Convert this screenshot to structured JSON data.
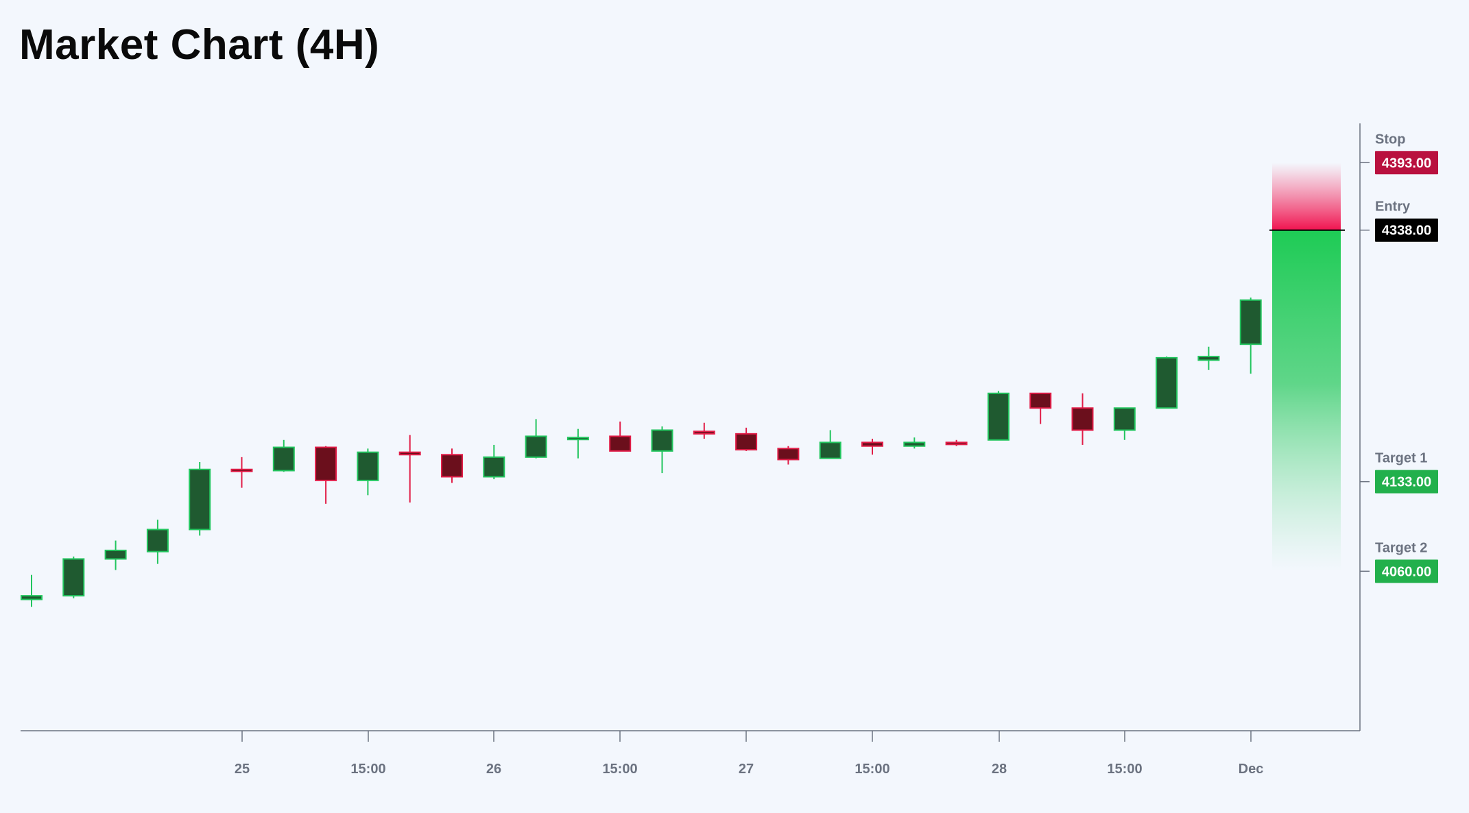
{
  "page": {
    "title": "Market Chart (4H)"
  },
  "colors": {
    "background": "#f3f7fd",
    "up_body": "#1f5a30",
    "up_border": "#22c55e",
    "down_body": "#6b0f1c",
    "down_border": "#e11d48",
    "stop": "#b9113f",
    "entry": "#000000",
    "target": "#22b04c",
    "axis": "#6b7280"
  },
  "chart_data": {
    "type": "candlestick",
    "title": "Market Chart (4H)",
    "x_ticks": [
      "25",
      "15:00",
      "26",
      "15:00",
      "27",
      "15:00",
      "28",
      "15:00",
      "Dec"
    ],
    "y_range": [
      3930,
      4425
    ],
    "candles": [
      {
        "o": 4037,
        "h": 4057,
        "l": 4031,
        "c": 4040
      },
      {
        "o": 4040,
        "h": 4072,
        "l": 4038,
        "c": 4070
      },
      {
        "o": 4070,
        "h": 4085,
        "l": 4061,
        "c": 4077
      },
      {
        "o": 4076,
        "h": 4102,
        "l": 4066,
        "c": 4094
      },
      {
        "o": 4094,
        "h": 4149,
        "l": 4089,
        "c": 4143
      },
      {
        "o": 4143,
        "h": 4153,
        "l": 4128,
        "c": 4142
      },
      {
        "o": 4142,
        "h": 4167,
        "l": 4141,
        "c": 4161
      },
      {
        "o": 4161,
        "h": 4162,
        "l": 4115,
        "c": 4134
      },
      {
        "o": 4134,
        "h": 4160,
        "l": 4122,
        "c": 4157
      },
      {
        "o": 4157,
        "h": 4171,
        "l": 4116,
        "c": 4155
      },
      {
        "o": 4155,
        "h": 4160,
        "l": 4132,
        "c": 4137
      },
      {
        "o": 4137,
        "h": 4163,
        "l": 4135,
        "c": 4153
      },
      {
        "o": 4153,
        "h": 4184,
        "l": 4152,
        "c": 4170
      },
      {
        "o": 4169,
        "h": 4176,
        "l": 4152,
        "c": 4169
      },
      {
        "o": 4170,
        "h": 4182,
        "l": 4160,
        "c": 4158
      },
      {
        "o": 4158,
        "h": 4178,
        "l": 4140,
        "c": 4175
      },
      {
        "o": 4174,
        "h": 4181,
        "l": 4168,
        "c": 4172
      },
      {
        "o": 4172,
        "h": 4177,
        "l": 4158,
        "c": 4159
      },
      {
        "o": 4160,
        "h": 4162,
        "l": 4147,
        "c": 4151
      },
      {
        "o": 4152,
        "h": 4175,
        "l": 4152,
        "c": 4165
      },
      {
        "o": 4165,
        "h": 4168,
        "l": 4155,
        "c": 4162
      },
      {
        "o": 4162,
        "h": 4169,
        "l": 4160,
        "c": 4165
      },
      {
        "o": 4165,
        "h": 4167,
        "l": 4162,
        "c": 4164
      },
      {
        "o": 4167,
        "h": 4207,
        "l": 4167,
        "c": 4205
      },
      {
        "o": 4205,
        "h": 4205,
        "l": 4180,
        "c": 4193
      },
      {
        "o": 4193,
        "h": 4205,
        "l": 4163,
        "c": 4175
      },
      {
        "o": 4175,
        "h": 4193,
        "l": 4167,
        "c": 4193
      },
      {
        "o": 4193,
        "h": 4235,
        "l": 4193,
        "c": 4234
      },
      {
        "o": 4232,
        "h": 4243,
        "l": 4224,
        "c": 4235
      },
      {
        "o": 4245,
        "h": 4283,
        "l": 4221,
        "c": 4281
      }
    ],
    "levels": [
      {
        "name": "Stop",
        "value": "4393.00",
        "price": 4393,
        "type": "stop"
      },
      {
        "name": "Entry",
        "value": "4338.00",
        "price": 4338,
        "type": "entry"
      },
      {
        "name": "Target 1",
        "value": "4133.00",
        "price": 4133,
        "type": "target"
      },
      {
        "name": "Target 2",
        "value": "4060.00",
        "price": 4060,
        "type": "target"
      }
    ]
  }
}
